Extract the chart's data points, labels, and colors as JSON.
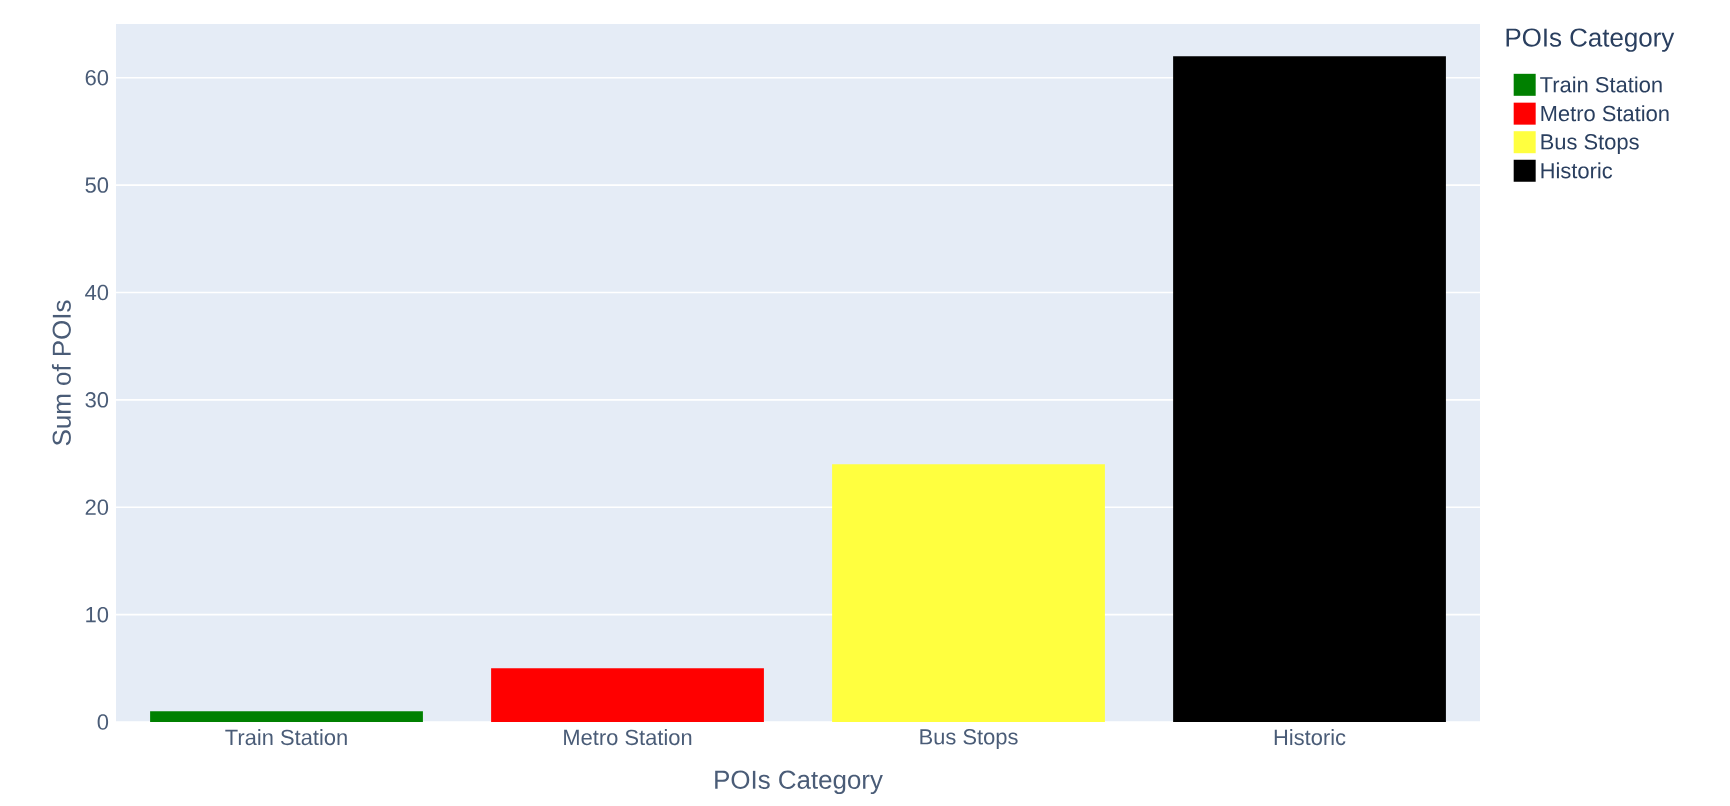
{
  "chart_data": {
    "type": "bar",
    "xlabel": "POIs Category",
    "ylabel": "Sum of POIs",
    "legend_title": "POIs Category",
    "categories": [
      "Train Station",
      "Metro Station",
      "Bus Stops",
      "Historic"
    ],
    "series": [
      {
        "name": "Train Station",
        "color": "#008000",
        "values": [
          1,
          null,
          null,
          null
        ]
      },
      {
        "name": "Metro Station",
        "color": "#ff0000",
        "values": [
          null,
          5,
          null,
          null
        ]
      },
      {
        "name": "Bus Stops",
        "color": "#ffff3f",
        "values": [
          null,
          null,
          24,
          null
        ]
      },
      {
        "name": "Historic",
        "color": "#000000",
        "values": [
          null,
          null,
          null,
          62
        ]
      }
    ],
    "ylim": [
      0,
      65
    ],
    "yticks": [
      0,
      10,
      20,
      30,
      40,
      50,
      60
    ],
    "grid": "y",
    "legend": "top right"
  }
}
